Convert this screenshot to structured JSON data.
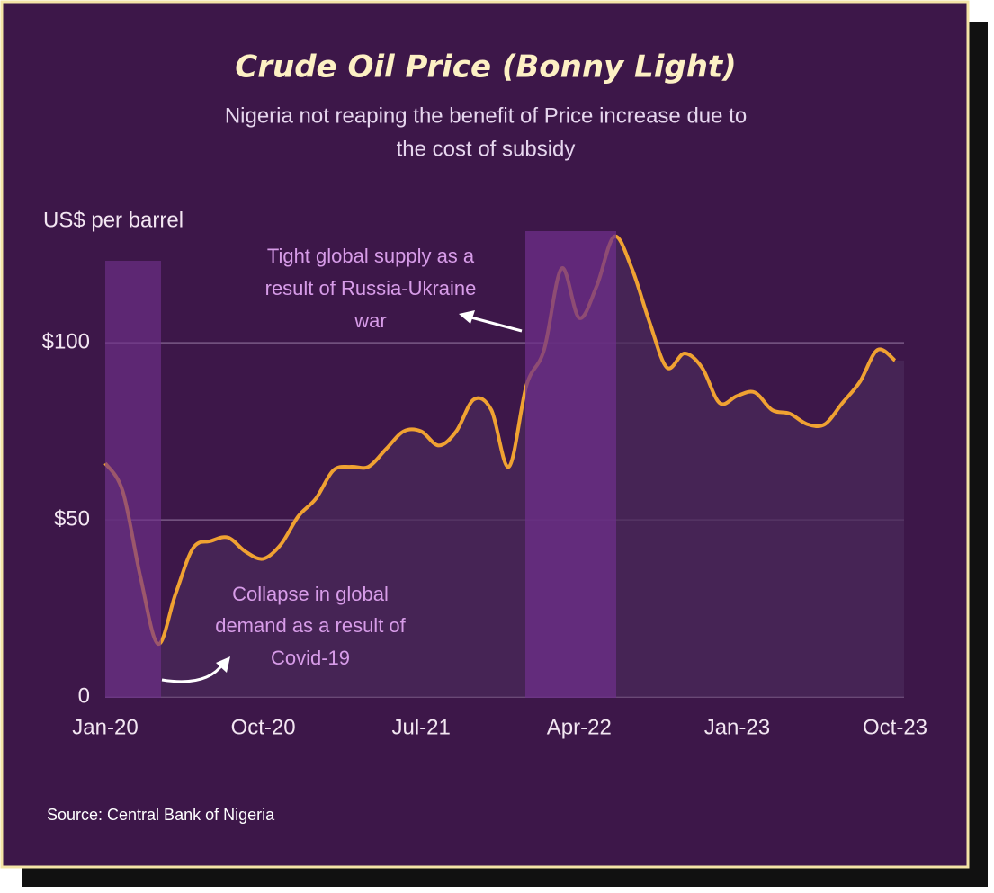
{
  "chart_data": {
    "type": "line",
    "title": "Crude Oil Price (Bonny Light)",
    "subtitle": [
      "Nigeria not reaping the benefit of Price increase due to",
      "the cost of subsidy"
    ],
    "y_label": "US$ per barrel",
    "source": "Source: Central Bank of Nigeria",
    "categories": [
      "Jan-20",
      null,
      null,
      null,
      null,
      null,
      null,
      null,
      null,
      "Oct-20",
      null,
      null,
      null,
      null,
      null,
      null,
      null,
      null,
      "Jul-21",
      null,
      null,
      null,
      null,
      null,
      null,
      null,
      null,
      "Apr-22",
      null,
      null,
      null,
      null,
      null,
      null,
      null,
      null,
      "Jan-23",
      null,
      null,
      null,
      null,
      null,
      null,
      null,
      null,
      "Oct-23"
    ],
    "series": [
      {
        "name": "Bonny Light",
        "color": "#f0a232",
        "values": [
          66,
          58,
          34,
          15,
          29,
          42,
          44,
          45,
          41,
          39,
          43,
          51,
          56,
          64,
          65,
          65,
          70,
          75,
          75,
          71,
          75,
          84,
          81,
          65,
          88,
          98,
          121,
          107,
          116,
          130,
          121,
          106,
          93,
          97,
          93,
          83,
          85,
          86,
          81,
          80,
          77,
          77,
          83,
          89,
          98,
          95
        ]
      }
    ],
    "ylim": [
      0,
      130
    ],
    "yticks": [
      0,
      {
        "value": 50,
        "label": "$50"
      },
      {
        "value": 100,
        "label": "$100"
      }
    ],
    "grid": true,
    "annotations": [
      {
        "lines": [
          "Tight global supply as a",
          "result of Russia-Ukraine",
          "war"
        ]
      },
      {
        "lines": [
          "Collapse in global",
          "demand as a result of",
          "Covid-19"
        ]
      }
    ]
  }
}
